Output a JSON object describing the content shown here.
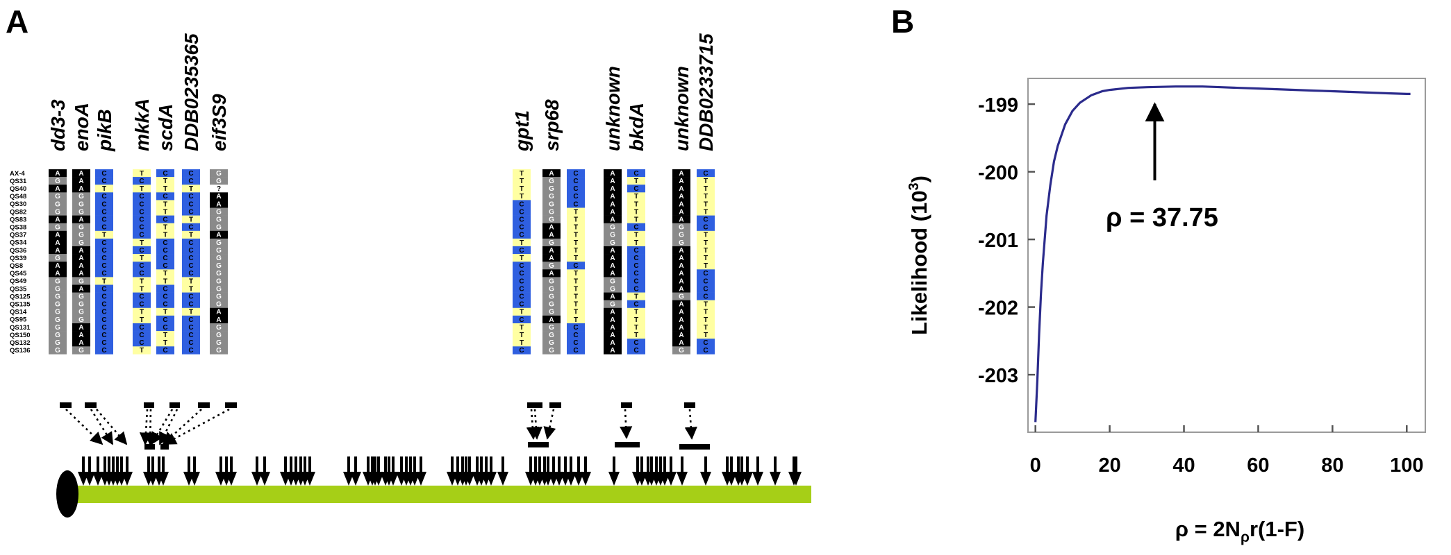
{
  "panel_a": {
    "label": "A",
    "strains": [
      "AX-4",
      "QS31",
      "QS40",
      "QS48",
      "QS30",
      "QS82",
      "QS83",
      "QS38",
      "QS37",
      "QS34",
      "QS36",
      "QS39",
      "QS8",
      "QS45",
      "QS49",
      "QS35",
      "QS125",
      "QS135",
      "QS14",
      "QS95",
      "QS131",
      "QS150",
      "QS132",
      "QS136"
    ],
    "columns": [
      {
        "gene": "dd3-3",
        "bases": "AGAGGGAGAAAGAAGGGGGGGGGG"
      },
      {
        "gene": "enoA",
        "bases": "AAAGGGAGGGAAAAGAGGGGAAAG"
      },
      {
        "gene": "pikB",
        "bases": "CCTCCCCCTCCCCCTCCCCCCCCC"
      },
      {
        "gene": "mkkA",
        "bases": "TCTCCCCCCTCTCCTTCCTTCCCT"
      },
      {
        "gene": "scdA",
        "bases": "CTTCTTCTTCCCCTTCCCTCCTTC"
      },
      {
        "gene": "DDB0235365",
        "bases": "CCTCCCTCTCCCCCTTCCTCCCCC"
      },
      {
        "gene": "eif3S9",
        "bases": "GG?AAGGGAGGGGGGGGGAAGGGG"
      },
      {
        "gene": "gpt1",
        "bases": "TTTTCCCCCTCTCCCCCCTCTTTC"
      },
      {
        "gene": "srp68",
        "bases": "AGGGGGGAAGAAGAGGGGGAGGGG"
      },
      {
        "gene": "",
        "bases": "CCCCCTTTTTTTCTTTTTTTCCCC"
      },
      {
        "gene": "unknown",
        "bases": "AAAAAAAGGGAAAAGGAGAAAAAA"
      },
      {
        "gene": "bkdA",
        "bases": "CTCTTTTCTTCCCCCCTCTTTTCC"
      },
      {
        "gene": "unknown",
        "bases": "AAAAAAAGGGAAAAAAGAAAAAAG"
      },
      {
        "gene": "DDB0233715",
        "bases": "CTTTTTCCTTTTTCCCCTTTTTCC"
      }
    ],
    "chromosome_color": "#a6cf17",
    "base_colors": {
      "A": "#000000",
      "G": "#8a8a8a",
      "C": "#2f5fe0",
      "T": "#ffffa2",
      "?": "#ffffff"
    }
  },
  "panel_b": {
    "label": "B",
    "annotation": "ρ = 37.75",
    "chart_data": {
      "type": "line",
      "xlabel": "ρ = 2N",
      "xlabel_sub": "ρ",
      "xlabel_tail": "r(1-F)",
      "ylabel": "Likelihood (10",
      "ylabel_sup": "3",
      "ylabel_tail": ")",
      "xticks": [
        "0",
        "20",
        "40",
        "60",
        "80",
        "100"
      ],
      "yticks": [
        "-199",
        "-200",
        "-201",
        "-202",
        "-203"
      ],
      "xlim": [
        -2,
        105
      ],
      "ylim": [
        -203.85,
        -198.62
      ],
      "x": [
        0,
        0.5,
        1,
        1.5,
        2,
        3,
        4,
        5,
        6,
        8,
        10,
        12,
        15,
        18,
        20,
        25,
        30,
        37.75,
        45,
        50,
        55,
        60,
        65,
        70,
        75,
        80,
        85,
        90,
        95,
        100,
        101
      ],
      "y": [
        -203.7,
        -203.1,
        -202.4,
        -201.8,
        -201.35,
        -200.65,
        -200.2,
        -199.85,
        -199.62,
        -199.3,
        -199.1,
        -198.98,
        -198.87,
        -198.81,
        -198.79,
        -198.76,
        -198.75,
        -198.74,
        -198.74,
        -198.75,
        -198.76,
        -198.77,
        -198.78,
        -198.79,
        -198.8,
        -198.81,
        -198.82,
        -198.83,
        -198.84,
        -198.85,
        -198.85
      ],
      "line_color": "#2b2b8c",
      "peak_x": 37.75
    }
  }
}
